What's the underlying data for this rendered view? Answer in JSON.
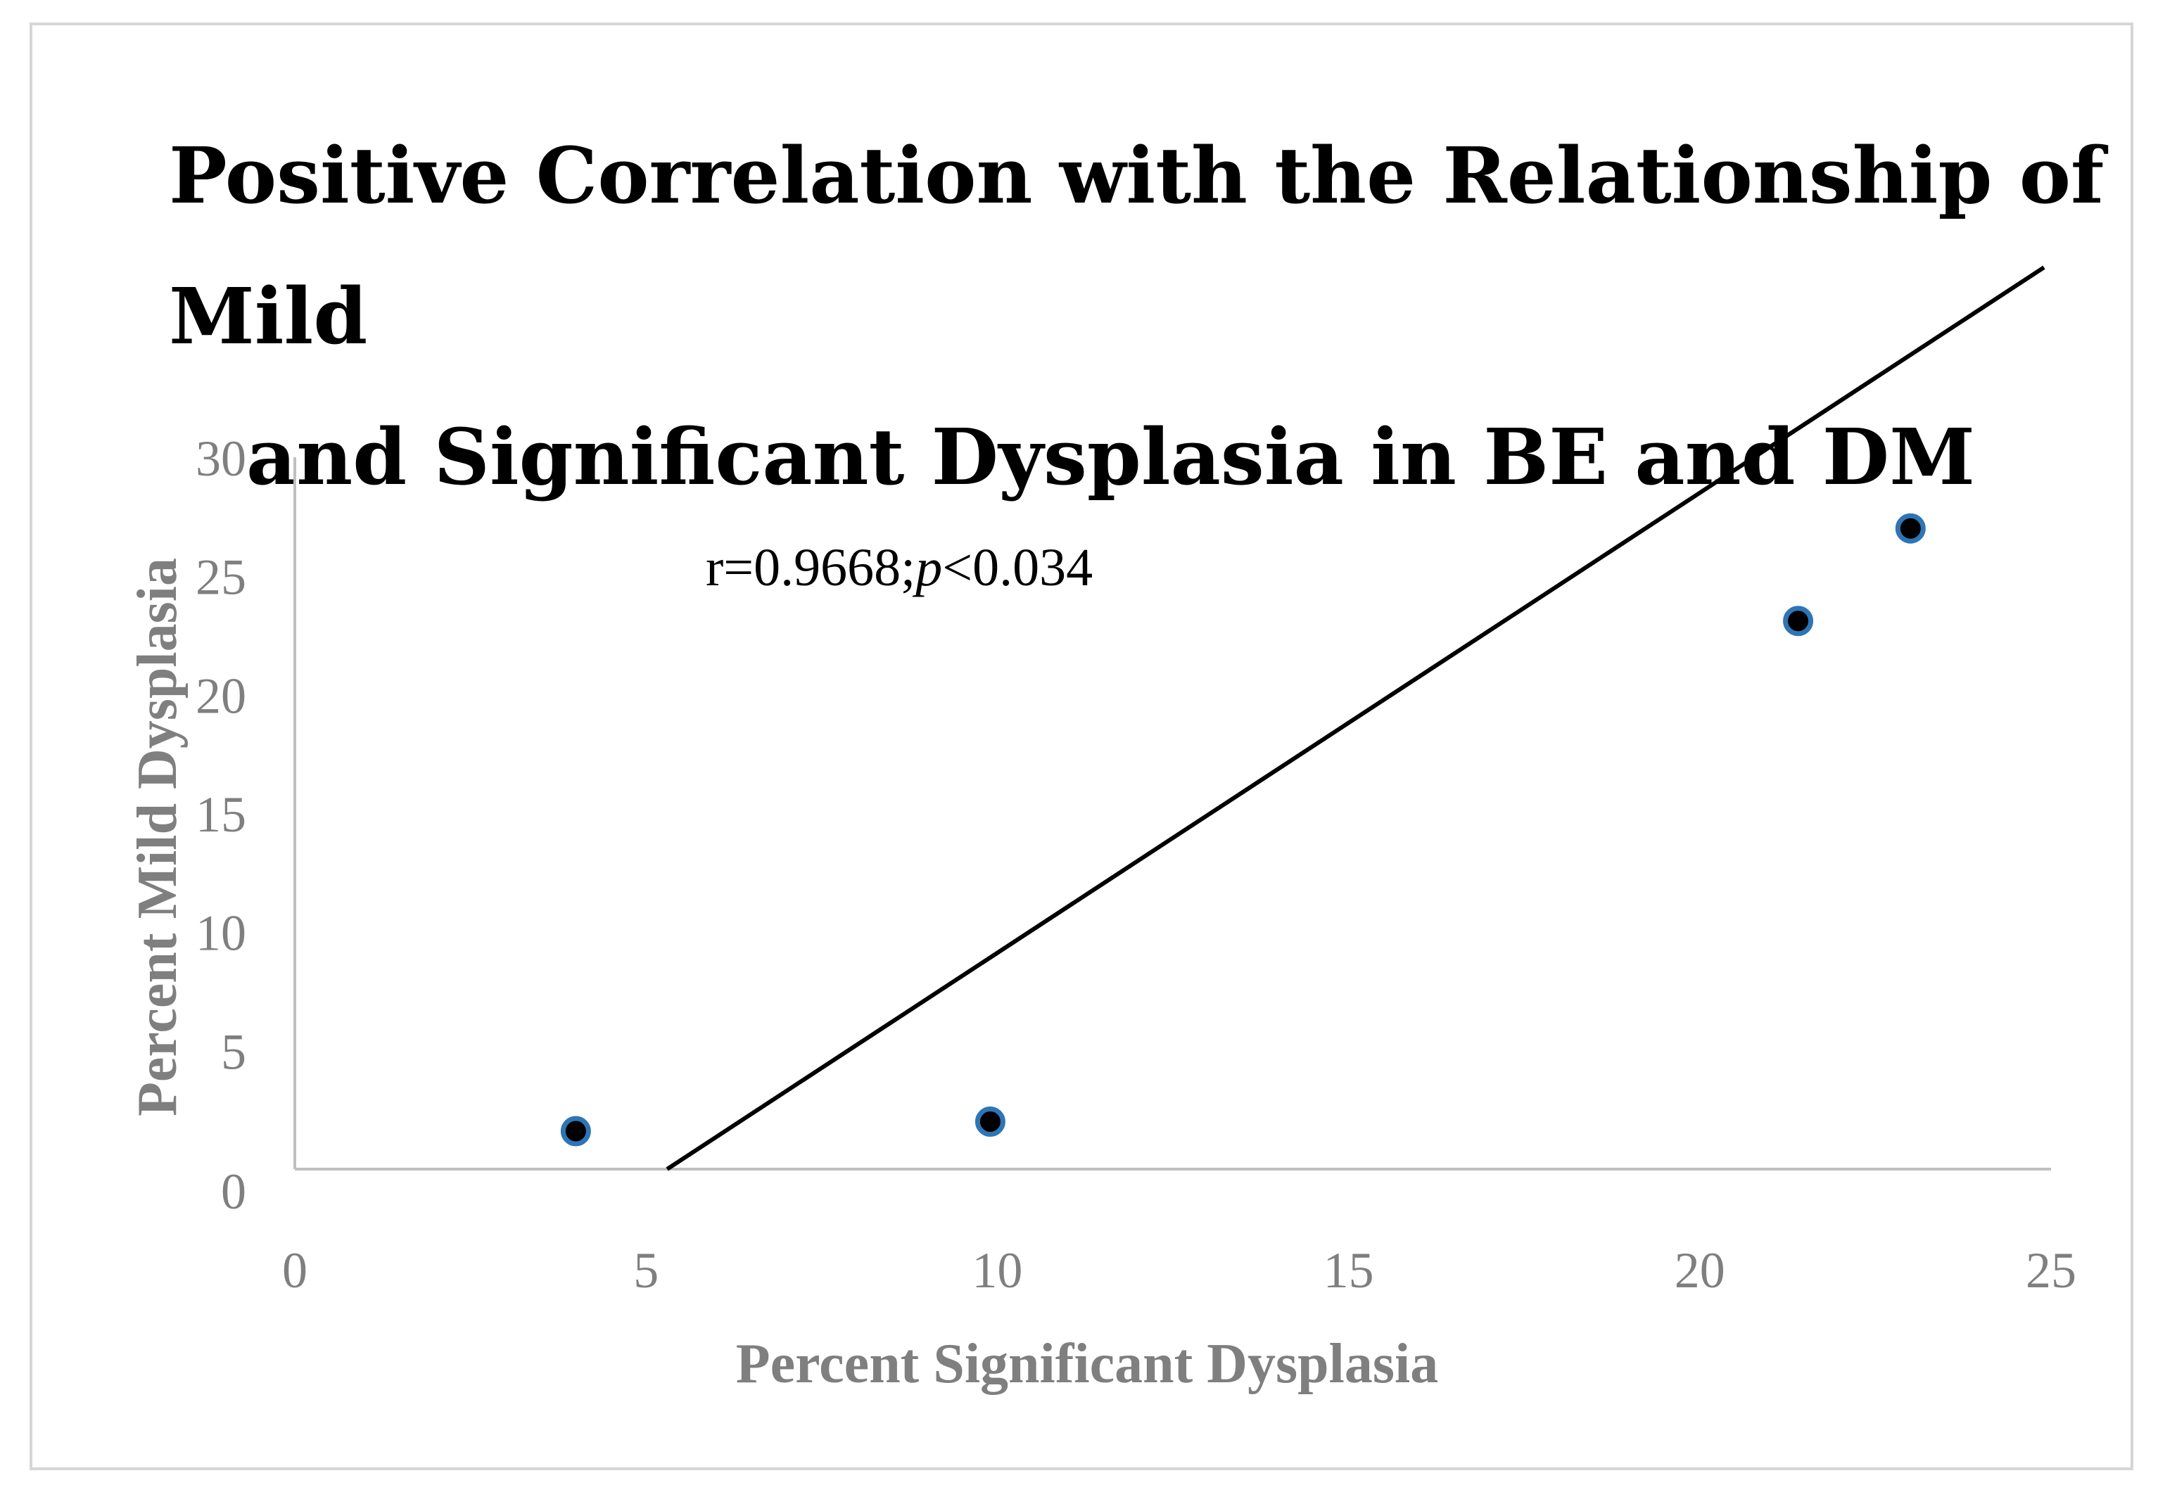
{
  "chart_data": {
    "type": "scatter",
    "title_line1": "Positive Correlation with the Relationship of Mild",
    "title_line2": "and Significant Dysplasia in BE and DM",
    "xlabel": "Percent Significant Dysplasia",
    "ylabel": "Percent Mild Dysplasia",
    "xlim": [
      0,
      25
    ],
    "ylim": [
      0,
      30
    ],
    "x_ticks": [
      0,
      5,
      10,
      15,
      20,
      25
    ],
    "y_ticks": [
      0,
      5,
      10,
      15,
      20,
      25,
      30
    ],
    "annotation": {
      "prefix": "r=0.9668;",
      "italic": "p",
      "suffix": "<0.034"
    },
    "points": [
      {
        "x": 4.0,
        "y": 1.6
      },
      {
        "x": 9.9,
        "y": 2.0
      },
      {
        "x": 21.4,
        "y": 23.1
      },
      {
        "x": 23.0,
        "y": 27.0
      }
    ],
    "trendline": {
      "x_start": 5.3,
      "y_start": 0,
      "x_end": 24.9,
      "y_end": 38.0
    },
    "colors": {
      "marker_fill": "#000000",
      "marker_edge": "#2e75b6",
      "line": "#000000",
      "axis": "#bfbfbf",
      "text_gray": "#7f7f7f"
    }
  }
}
